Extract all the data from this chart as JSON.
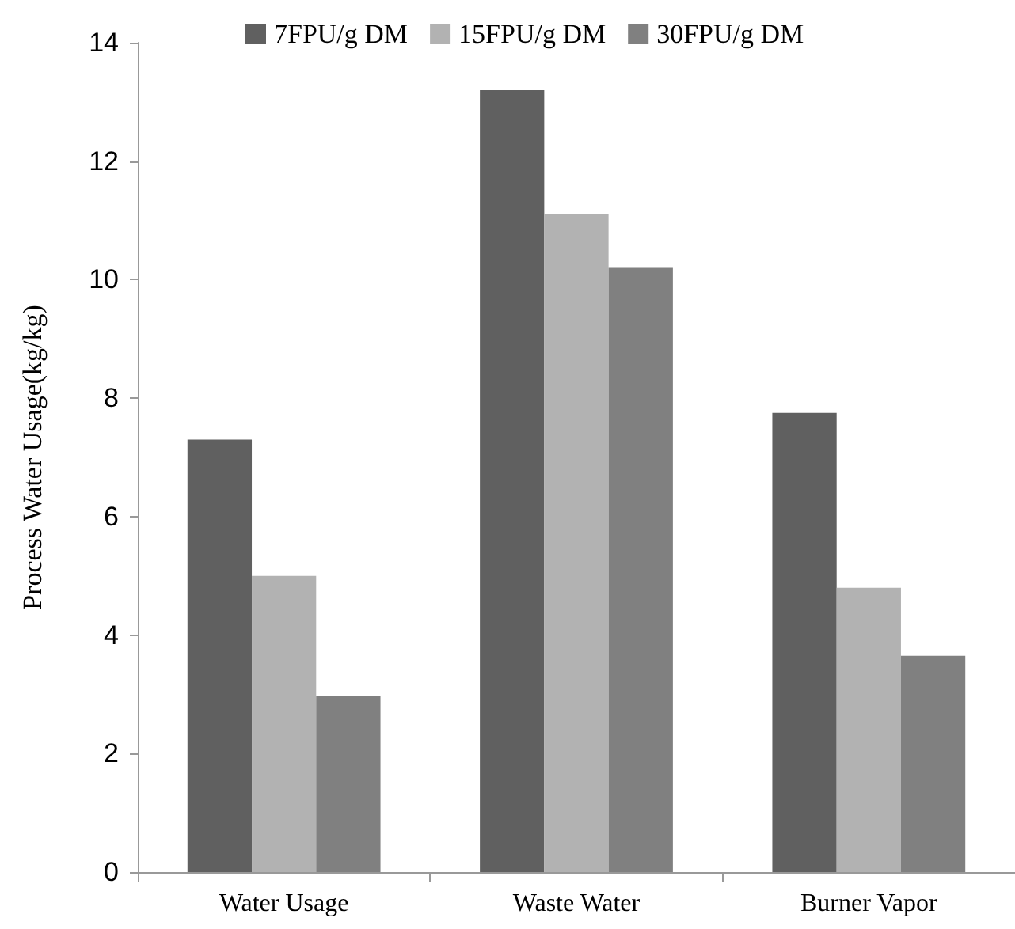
{
  "chart_data": {
    "type": "bar",
    "ylabel": "Process Water Usage(kg/kg)",
    "categories": [
      "Water Usage",
      "Waste Water",
      "Burner Vapor"
    ],
    "series": [
      {
        "name": "7FPU/g DM",
        "color": "#606060",
        "values": [
          7.3,
          13.2,
          7.75
        ]
      },
      {
        "name": "15FPU/g DM",
        "color": "#b2b2b2",
        "values": [
          5.0,
          11.1,
          4.8
        ]
      },
      {
        "name": "30FPU/g DM",
        "color": "#808080",
        "values": [
          2.97,
          10.2,
          3.65
        ]
      }
    ],
    "ylim": [
      0,
      14
    ],
    "yticks": [
      0,
      2,
      4,
      6,
      8,
      10,
      12,
      14
    ],
    "grid": false,
    "legend": "top"
  }
}
